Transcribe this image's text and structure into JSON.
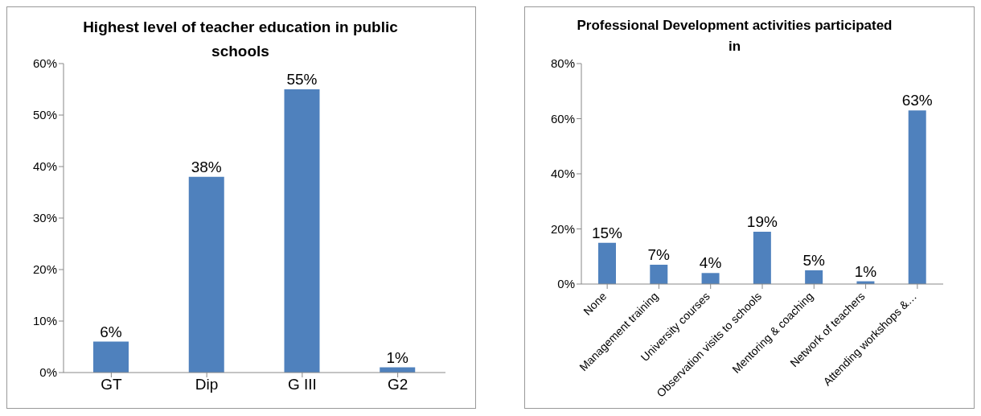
{
  "chart_data": [
    {
      "type": "bar",
      "title": "Highest level of  teacher education in public schools",
      "categories": [
        "GT",
        "Dip",
        "G III",
        "G2"
      ],
      "values": [
        6,
        38,
        55,
        1
      ],
      "color": "#4f81bd",
      "value_labels": [
        "6%",
        "38%",
        "55%",
        "1%"
      ],
      "ylim": [
        0,
        60
      ],
      "yticks": [
        {
          "value": 0,
          "label": "0%"
        },
        {
          "value": 10,
          "label": "10%"
        },
        {
          "value": 20,
          "label": "20%"
        },
        {
          "value": 30,
          "label": "30%"
        },
        {
          "value": 40,
          "label": "40%"
        },
        {
          "value": 50,
          "label": "50%"
        },
        {
          "value": 60,
          "label": "60%"
        }
      ],
      "grid": false,
      "legend": false
    },
    {
      "type": "bar",
      "title": "Professional Development activities participated in",
      "categories": [
        "None",
        "Management training",
        "University courses",
        "Observation visits to  schools",
        "Mentoring & coaching",
        "Network of teachers",
        "Attending workshops &…"
      ],
      "values": [
        15,
        7,
        4,
        19,
        5,
        1,
        63
      ],
      "color": "#4f81bd",
      "value_labels": [
        "15%",
        "7%",
        "4%",
        "19%",
        "5%",
        "1%",
        "63%"
      ],
      "ylim": [
        0,
        80
      ],
      "yticks": [
        {
          "value": 0,
          "label": "0%"
        },
        {
          "value": 20,
          "label": "20%"
        },
        {
          "value": 40,
          "label": "40%"
        },
        {
          "value": 60,
          "label": "60%"
        },
        {
          "value": 80,
          "label": "80%"
        }
      ],
      "grid": false,
      "legend": false
    }
  ]
}
